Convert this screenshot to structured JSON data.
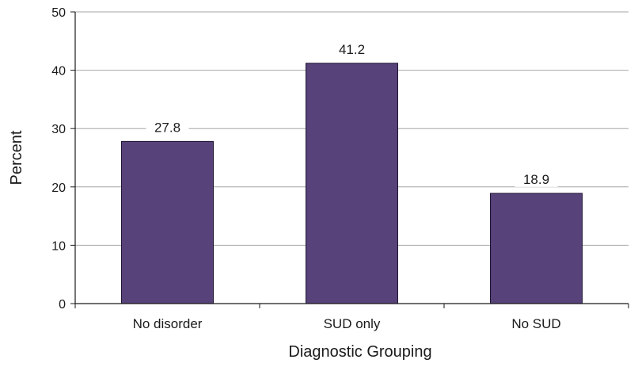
{
  "chart_data": {
    "type": "bar",
    "title": "",
    "xlabel": "Diagnostic Grouping",
    "ylabel": "Percent",
    "categories": [
      "No disorder",
      "SUD only",
      "No SUD"
    ],
    "values": [
      27.8,
      41.2,
      18.9
    ],
    "value_labels": [
      "27.8",
      "41.2",
      "18.9"
    ],
    "ylim": [
      0,
      50
    ],
    "yticks": [
      0,
      10,
      20,
      30,
      40,
      50
    ],
    "grid": true,
    "legend": "none",
    "bar_color": "#574279",
    "bar_edge_color": "#1f1533",
    "grid_color": "#a6a6a6"
  }
}
